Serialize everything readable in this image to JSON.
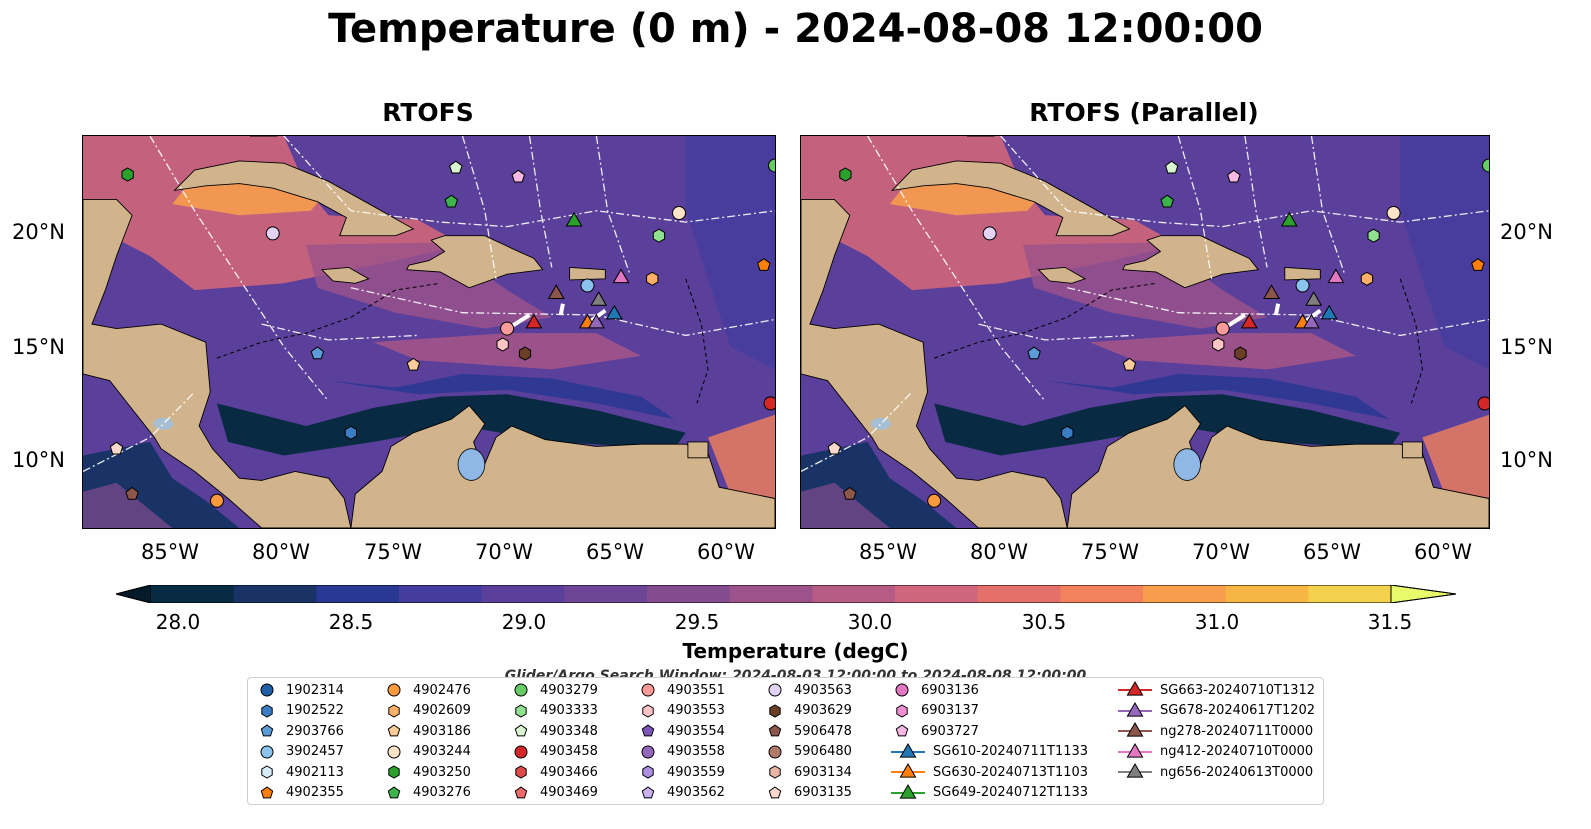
{
  "title": "Temperature (0 m) - 2024-08-08 12:00:00",
  "panels": [
    {
      "title": "RTOFS"
    },
    {
      "title": "RTOFS (Parallel)"
    }
  ],
  "lat_labels": [
    "20°N",
    "15°N",
    "10°N"
  ],
  "lon_labels": [
    "85°W",
    "80°W",
    "75°W",
    "70°W",
    "65°W",
    "60°W"
  ],
  "colorbar": {
    "label": "Temperature (degC)",
    "ticks": [
      "28.0",
      "28.5",
      "29.0",
      "29.5",
      "30.0",
      "30.5",
      "31.0",
      "31.5"
    ],
    "min": 27.75,
    "max": 31.5,
    "colors": [
      "#082a43",
      "#1a3366",
      "#283893",
      "#453d9e",
      "#5a3f9b",
      "#6c4594",
      "#834c8f",
      "#9c528b",
      "#b65b84",
      "#cf667b",
      "#e4706b",
      "#f2825c",
      "#f79d4d",
      "#f6b645",
      "#f3d14c"
    ],
    "extend_low": "#031b2b",
    "extend_high": "#e8f96a"
  },
  "search_window": "Glider/Argo Search Window: 2024-08-03 12:00:00 to 2024-08-08 12:00:00",
  "legend": {
    "columns": [
      [
        {
          "label": "1902314",
          "marker": "circle",
          "color": "#1f5fa6"
        },
        {
          "label": "1902522",
          "marker": "hexagon",
          "color": "#3b7dc4"
        },
        {
          "label": "2903766",
          "marker": "pentagon",
          "color": "#5b9bd8"
        },
        {
          "label": "3902457",
          "marker": "circle",
          "color": "#8cc3ee"
        },
        {
          "label": "4902113",
          "marker": "hexagon",
          "color": "#d7ecfb"
        },
        {
          "label": "4902355",
          "marker": "pentagon",
          "color": "#ff7f0e"
        }
      ],
      [
        {
          "label": "4902476",
          "marker": "circle",
          "color": "#ff9a3c"
        },
        {
          "label": "4902609",
          "marker": "hexagon",
          "color": "#ffb066"
        },
        {
          "label": "4903186",
          "marker": "pentagon",
          "color": "#ffcc99"
        },
        {
          "label": "4903244",
          "marker": "circle",
          "color": "#ffe3c8"
        },
        {
          "label": "4903250",
          "marker": "hexagon",
          "color": "#2ca02c"
        },
        {
          "label": "4903276",
          "marker": "pentagon",
          "color": "#3cb44b"
        }
      ],
      [
        {
          "label": "4903279",
          "marker": "circle",
          "color": "#66cc66"
        },
        {
          "label": "4903333",
          "marker": "hexagon",
          "color": "#8fe08f"
        },
        {
          "label": "4903348",
          "marker": "pentagon",
          "color": "#d8f5d0"
        },
        {
          "label": "4903458",
          "marker": "circle",
          "color": "#d62728"
        },
        {
          "label": "4903466",
          "marker": "hexagon",
          "color": "#e04a4a"
        },
        {
          "label": "4903469",
          "marker": "pentagon",
          "color": "#ee6b6b"
        }
      ],
      [
        {
          "label": "4903551",
          "marker": "circle",
          "color": "#ff9a9a"
        },
        {
          "label": "4903553",
          "marker": "hexagon",
          "color": "#ffc4c4"
        },
        {
          "label": "4903554",
          "marker": "pentagon",
          "color": "#7b55b8"
        },
        {
          "label": "4903558",
          "marker": "circle",
          "color": "#9467bd"
        },
        {
          "label": "4903559",
          "marker": "hexagon",
          "color": "#b08ee0"
        },
        {
          "label": "4903562",
          "marker": "pentagon",
          "color": "#c9b2ef"
        }
      ],
      [
        {
          "label": "4903563",
          "marker": "circle",
          "color": "#e3d4f7"
        },
        {
          "label": "4903629",
          "marker": "hexagon",
          "color": "#6b3e26"
        },
        {
          "label": "5906478",
          "marker": "pentagon",
          "color": "#8c564b"
        },
        {
          "label": "5906480",
          "marker": "circle",
          "color": "#b07a6a"
        },
        {
          "label": "6903134",
          "marker": "hexagon",
          "color": "#e8b5a5"
        },
        {
          "label": "6903135",
          "marker": "pentagon",
          "color": "#ffd8cc"
        }
      ],
      [
        {
          "label": "6903136",
          "marker": "circle",
          "color": "#e377c2"
        },
        {
          "label": "6903137",
          "marker": "hexagon",
          "color": "#f08fd2"
        },
        {
          "label": "6903727",
          "marker": "pentagon",
          "color": "#f8b8e3"
        },
        {
          "label": "SG610-20240711T1133",
          "marker": "triangle-line",
          "color": "#1f77b4"
        },
        {
          "label": "SG630-20240713T1103",
          "marker": "triangle-line",
          "color": "#ff7f0e"
        },
        {
          "label": "SG649-20240712T1133",
          "marker": "triangle-line",
          "color": "#2ca02c"
        }
      ],
      [
        {
          "label": "SG663-20240710T1312",
          "marker": "triangle-line",
          "color": "#d62728"
        },
        {
          "label": "SG678-20240617T1202",
          "marker": "triangle-line",
          "color": "#9467bd"
        },
        {
          "label": "ng278-20240711T0000",
          "marker": "triangle-line",
          "color": "#8c564b"
        },
        {
          "label": "ng412-20240710T0000",
          "marker": "triangle-line",
          "color": "#e377c2"
        },
        {
          "label": "ng656-20240613T0000",
          "marker": "triangle-line",
          "color": "#7f7f7f"
        }
      ]
    ]
  },
  "chart_data": {
    "type": "heatmap",
    "variable": "Temperature",
    "units": "degC",
    "depth_m": 0,
    "time": "2024-08-08 12:00:00",
    "region": {
      "lon_range": [
        -89,
        -58
      ],
      "lat_range": [
        7,
        24.3
      ]
    },
    "color_range": [
      28.0,
      31.5
    ],
    "panels": [
      "RTOFS",
      "RTOFS (Parallel)"
    ],
    "markers": [
      {
        "id": "1902314",
        "type": "circle",
        "color": "#1f5fa6"
      },
      {
        "id": "4902355",
        "type": "pentagon",
        "color": "#ff7f0e",
        "lon": -58.5,
        "lat": 18.6
      },
      {
        "id": "4903458",
        "type": "circle",
        "color": "#d62728",
        "lon": -58.2,
        "lat": 12.5
      },
      {
        "id": "SG610-20240711T1133",
        "type": "triangle",
        "color": "#1f77b4",
        "lon": -65.2,
        "lat": 16.5
      },
      {
        "id": "SG630-20240713T1103",
        "type": "triangle",
        "color": "#ff7f0e",
        "lon": -66.4,
        "lat": 16.1
      },
      {
        "id": "SG649-20240712T1133",
        "type": "triangle",
        "color": "#2ca02c",
        "lon": -67.0,
        "lat": 20.6
      },
      {
        "id": "SG663-20240710T1312",
        "type": "triangle",
        "color": "#d62728",
        "lon": -68.8,
        "lat": 16.1
      },
      {
        "id": "SG678-20240617T1202",
        "type": "triangle",
        "color": "#9467bd",
        "lon": -66.0,
        "lat": 16.1
      },
      {
        "id": "ng278-20240711T0000",
        "type": "triangle",
        "color": "#8c564b",
        "lon": -67.8,
        "lat": 17.4
      },
      {
        "id": "ng412-20240710T0000",
        "type": "triangle",
        "color": "#e377c2",
        "lon": -64.9,
        "lat": 18.1
      },
      {
        "id": "ng656-20240613T0000",
        "type": "triangle",
        "color": "#7f7f7f",
        "lon": -65.9,
        "lat": 17.1
      },
      {
        "id": "3902457",
        "type": "circle",
        "color": "#8cc3ee",
        "lon": -66.4,
        "lat": 17.7
      },
      {
        "id": "4903563",
        "type": "circle",
        "color": "#e3d4f7",
        "lon": -80.5,
        "lat": 20.0
      },
      {
        "id": "4903244",
        "type": "circle",
        "color": "#ffe3c8",
        "lon": -62.3,
        "lat": 20.9
      },
      {
        "id": "4903333",
        "type": "hexagon",
        "color": "#8fe08f",
        "lon": -63.2,
        "lat": 19.9
      },
      {
        "id": "4903279",
        "type": "circle",
        "color": "#66cc66",
        "lon": -58.0,
        "lat": 23.0
      },
      {
        "id": "4903348",
        "type": "pentagon",
        "color": "#d8f5d0",
        "lon": -72.3,
        "lat": 22.9
      },
      {
        "id": "4903276",
        "type": "pentagon",
        "color": "#3cb44b",
        "lon": -72.5,
        "lat": 21.4
      },
      {
        "id": "4903250",
        "type": "hexagon",
        "color": "#2ca02c",
        "lon": -87.0,
        "lat": 22.6
      },
      {
        "id": "6903727",
        "type": "pentagon",
        "color": "#f8b8e3",
        "lon": -69.5,
        "lat": 22.5
      },
      {
        "id": "4903629",
        "type": "hexagon",
        "color": "#6b3e26",
        "lon": -69.2,
        "lat": 14.7
      },
      {
        "id": "4903551",
        "type": "circle",
        "color": "#ff9a9a",
        "lon": -70.0,
        "lat": 15.8
      },
      {
        "id": "4903553",
        "type": "hexagon",
        "color": "#ffc4c4",
        "lon": -70.2,
        "lat": 15.1
      },
      {
        "id": "4903186",
        "type": "pentagon",
        "color": "#ffcc99",
        "lon": -74.2,
        "lat": 14.2
      },
      {
        "id": "4902609",
        "type": "hexagon",
        "color": "#ffb066",
        "lon": -63.5,
        "lat": 18.0
      },
      {
        "id": "2903766",
        "type": "pentagon",
        "color": "#5b9bd8",
        "lon": -78.5,
        "lat": 14.7
      },
      {
        "id": "1902522",
        "type": "hexagon",
        "color": "#3b7dc4",
        "lon": -77.0,
        "lat": 11.2
      },
      {
        "id": "4902476",
        "type": "circle",
        "color": "#ff9a3c",
        "lon": -83.0,
        "lat": 8.2
      },
      {
        "id": "5906478",
        "type": "pentagon",
        "color": "#8c564b",
        "lon": -86.8,
        "lat": 8.5
      },
      {
        "id": "6903135",
        "type": "pentagon",
        "color": "#ffd8cc",
        "lon": -87.5,
        "lat": 10.5
      }
    ]
  }
}
